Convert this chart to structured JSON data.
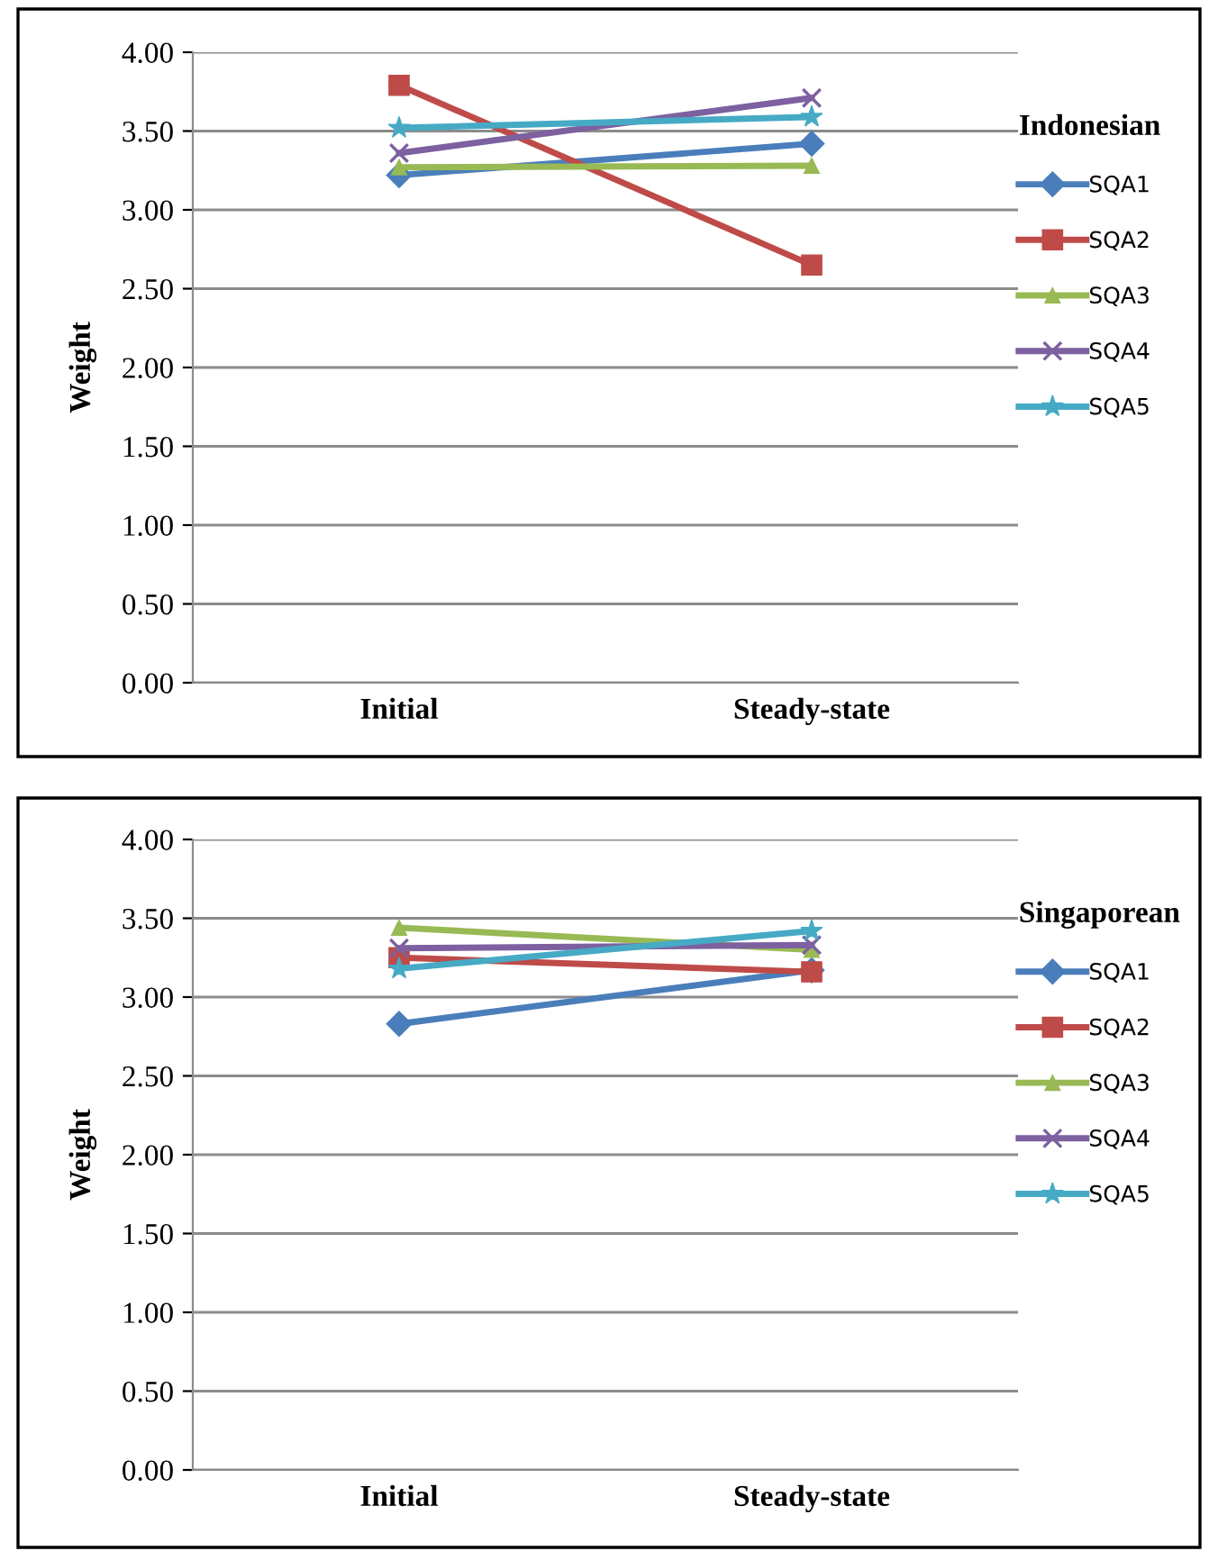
{
  "chart_data": [
    {
      "type": "line",
      "ylabel": "Weight",
      "legend_title": "Indonesian",
      "categories": [
        "Initial",
        "Steady-state"
      ],
      "ylim": [
        0,
        4
      ],
      "yticks": [
        {
          "value": 0,
          "label": "0.00"
        },
        {
          "value": 0.5,
          "label": "0.50"
        },
        {
          "value": 1,
          "label": "1.00"
        },
        {
          "value": 1.5,
          "label": "1.50"
        },
        {
          "value": 2,
          "label": "2.00"
        },
        {
          "value": 2.5,
          "label": "2.50"
        },
        {
          "value": 3,
          "label": "3.00"
        },
        {
          "value": 3.5,
          "label": "3.50"
        },
        {
          "value": 4,
          "label": "4.00"
        }
      ],
      "grid": "y",
      "legend": "right",
      "series": [
        {
          "name": "SQA1",
          "color": "#4a7ebb",
          "marker": "diamond",
          "values": [
            3.22,
            3.42
          ]
        },
        {
          "name": "SQA2",
          "color": "#be4b48",
          "marker": "square",
          "values": [
            3.79,
            2.65
          ]
        },
        {
          "name": "SQA3",
          "color": "#98b954",
          "marker": "triangle",
          "values": [
            3.27,
            3.28
          ]
        },
        {
          "name": "SQA4",
          "color": "#7d60a0",
          "marker": "cross",
          "values": [
            3.36,
            3.71
          ]
        },
        {
          "name": "SQA5",
          "color": "#46aac5",
          "marker": "star",
          "values": [
            3.52,
            3.59
          ]
        }
      ]
    },
    {
      "type": "line",
      "ylabel": "Weight",
      "legend_title": "Singaporean",
      "categories": [
        "Initial",
        "Steady-state"
      ],
      "ylim": [
        0,
        4
      ],
      "yticks": [
        {
          "value": 0,
          "label": "0.00"
        },
        {
          "value": 0.5,
          "label": "0.50"
        },
        {
          "value": 1,
          "label": "1.00"
        },
        {
          "value": 1.5,
          "label": "1.50"
        },
        {
          "value": 2,
          "label": "2.00"
        },
        {
          "value": 2.5,
          "label": "2.50"
        },
        {
          "value": 3,
          "label": "3.00"
        },
        {
          "value": 3.5,
          "label": "3.50"
        },
        {
          "value": 4,
          "label": "4.00"
        }
      ],
      "grid": "y",
      "legend": "right",
      "series": [
        {
          "name": "SQA1",
          "color": "#4a7ebb",
          "marker": "diamond",
          "values": [
            2.83,
            3.17
          ]
        },
        {
          "name": "SQA2",
          "color": "#be4b48",
          "marker": "square",
          "values": [
            3.25,
            3.16
          ]
        },
        {
          "name": "SQA3",
          "color": "#98b954",
          "marker": "triangle",
          "values": [
            3.44,
            3.3
          ]
        },
        {
          "name": "SQA4",
          "color": "#7d60a0",
          "marker": "cross",
          "values": [
            3.31,
            3.33
          ]
        },
        {
          "name": "SQA5",
          "color": "#46aac5",
          "marker": "star",
          "values": [
            3.18,
            3.42
          ]
        }
      ]
    }
  ]
}
